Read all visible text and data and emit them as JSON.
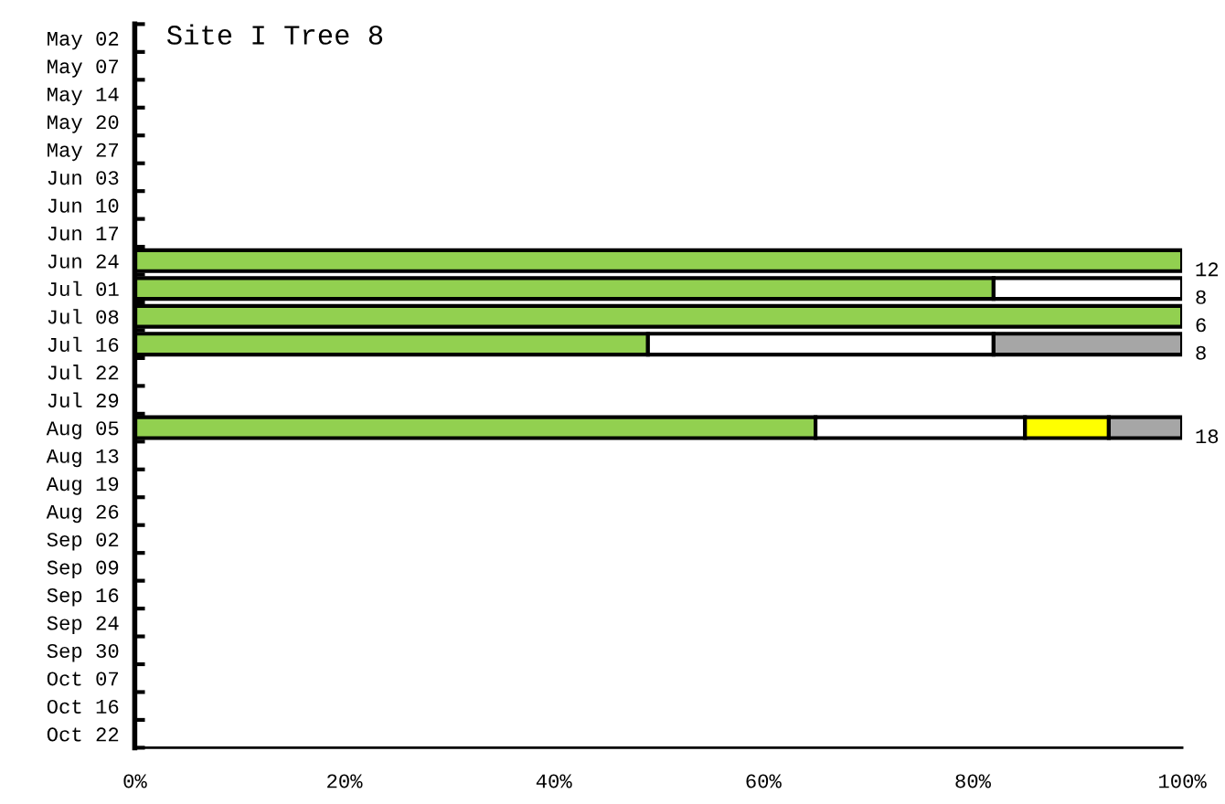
{
  "chart_data": {
    "type": "bar",
    "orientation": "horizontal",
    "stacked": true,
    "title": "Site I Tree 8",
    "categories": [
      "May 02",
      "May 07",
      "May 14",
      "May 20",
      "May 27",
      "Jun 03",
      "Jun 10",
      "Jun 17",
      "Jun 24",
      "Jul 01",
      "Jul 08",
      "Jul 16",
      "Jul 22",
      "Jul 29",
      "Aug 05",
      "Aug 13",
      "Aug 19",
      "Aug 26",
      "Sep 02",
      "Sep 09",
      "Sep 16",
      "Sep 24",
      "Sep 30",
      "Oct 07",
      "Oct 16",
      "Oct 22"
    ],
    "series": [
      {
        "color": "#92d050",
        "values": [
          null,
          null,
          null,
          null,
          null,
          null,
          null,
          null,
          100,
          82,
          100,
          49,
          null,
          null,
          65,
          null,
          null,
          null,
          null,
          null,
          null,
          null,
          null,
          null,
          null,
          null
        ]
      },
      {
        "color": "#ffffff",
        "values": [
          null,
          null,
          null,
          null,
          null,
          null,
          null,
          null,
          null,
          18,
          null,
          33,
          null,
          null,
          20,
          null,
          null,
          null,
          null,
          null,
          null,
          null,
          null,
          null,
          null,
          null
        ]
      },
      {
        "color": "#ffff00",
        "values": [
          null,
          null,
          null,
          null,
          null,
          null,
          null,
          null,
          null,
          null,
          null,
          null,
          null,
          null,
          8,
          null,
          null,
          null,
          null,
          null,
          null,
          null,
          null,
          null,
          null,
          null
        ]
      },
      {
        "color": "#a6a6a6",
        "values": [
          null,
          null,
          null,
          null,
          null,
          null,
          null,
          null,
          null,
          null,
          null,
          18,
          null,
          null,
          7,
          null,
          null,
          null,
          null,
          null,
          null,
          null,
          null,
          null,
          null,
          null
        ]
      }
    ],
    "xlim": [
      0,
      100
    ],
    "xticks": [
      {
        "value": 0,
        "label": "0%"
      },
      {
        "value": 20,
        "label": "20%"
      },
      {
        "value": 40,
        "label": "40%"
      },
      {
        "value": 60,
        "label": "60%"
      },
      {
        "value": 80,
        "label": "80%"
      },
      {
        "value": 100,
        "label": "100%"
      }
    ],
    "annotations": [
      "12",
      "8",
      "6",
      "8",
      "18"
    ],
    "grid": false,
    "legend": false
  }
}
